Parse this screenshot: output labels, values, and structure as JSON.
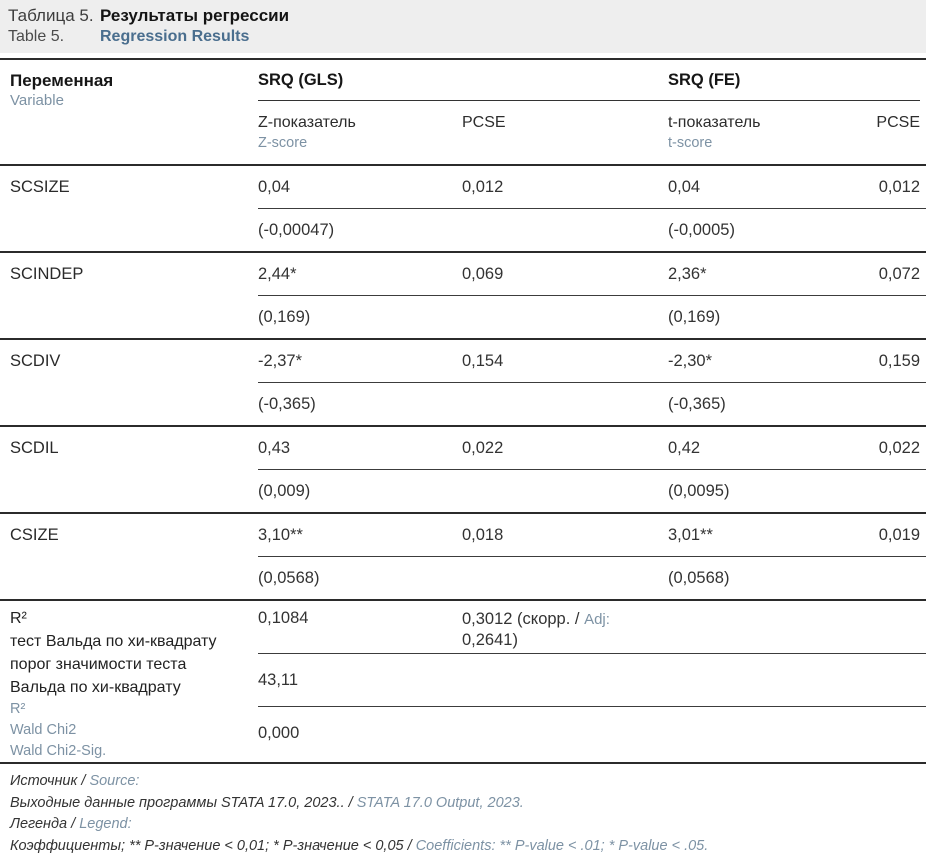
{
  "caption": {
    "label_ru": "Таблица 5.",
    "title_ru": "Результаты регрессии",
    "label_en": "Table 5.",
    "title_en": "Regression Results"
  },
  "colors": {
    "accent_blue": "#4a6e8e",
    "secondary_teal": "#7d92a4",
    "caption_background": "#eeeeee",
    "rule_dark": "#2b2b2b"
  },
  "table": {
    "variable_header": {
      "ru": "Переменная",
      "en": "Variable"
    },
    "groups": {
      "gls": "SRQ (GLS)",
      "fe": "SRQ (FE)"
    },
    "subheaders": {
      "z_ru": "Z-показатель",
      "z_en": "Z-score",
      "pcse_gls": "PCSE",
      "t_ru": "t-показатель",
      "t_en": "t-score",
      "pcse_fe": "PCSE"
    },
    "rows": [
      {
        "variable": "SCSIZE",
        "gls_stat": "0,04",
        "gls_pcse": "0,012",
        "fe_stat": "0,04",
        "fe_pcse": "0,012",
        "gls_se": "(-0,00047)",
        "fe_se": "(-0,0005)"
      },
      {
        "variable": "SCINDEP",
        "gls_stat": "2,44*",
        "gls_pcse": "0,069",
        "fe_stat": "2,36*",
        "fe_pcse": "0,072",
        "gls_se": "(0,169)",
        "fe_se": "(0,169)"
      },
      {
        "variable": "SCDIV",
        "gls_stat": "-2,37*",
        "gls_pcse": "0,154",
        "fe_stat": "-2,30*",
        "fe_pcse": "0,159",
        "gls_se": "(-0,365)",
        "fe_se": "(-0,365)"
      },
      {
        "variable": "SCDIL",
        "gls_stat": "0,43",
        "gls_pcse": "0,022",
        "fe_stat": "0,42",
        "fe_pcse": "0,022",
        "gls_se": "(0,009)",
        "fe_se": "(0,0095)"
      },
      {
        "variable": "CSIZE",
        "gls_stat": "3,10**",
        "gls_pcse": "0,018",
        "fe_stat": "3,01**",
        "fe_pcse": "0,019",
        "gls_se": "(0,0568)",
        "fe_se": "(0,0568)"
      }
    ],
    "stats": {
      "labels_ru": [
        "R²",
        "тест Вальда по хи-квадрату",
        "порог значимости теста",
        "Вальда по хи-квадрату"
      ],
      "labels_en": [
        "R²",
        "Wald Chi2",
        "Wald Chi2-Sig."
      ],
      "r2": "0,1084",
      "r2_adj_prefix": "0,3012 (скорр. / ",
      "r2_adj_label": "Adj:",
      "r2_adj_value": "0,2641)",
      "wald_chi2": "43,11",
      "wald_chi2_sig": "0,000"
    }
  },
  "footnotes": [
    {
      "ru": "Источник / ",
      "en": "Source:"
    },
    {
      "ru": "Выходные данные программы STATA 17.0, 2023.. / ",
      "en": "STATA 17.0 Output, 2023."
    },
    {
      "ru": "Легенда / ",
      "en": "Legend:"
    },
    {
      "ru": "Коэффициенты; ** Р-значение < 0,01; * Р-значение < 0,05 / ",
      "en": "Coefficients: ** P-value < .01; * P-value < .05."
    }
  ]
}
